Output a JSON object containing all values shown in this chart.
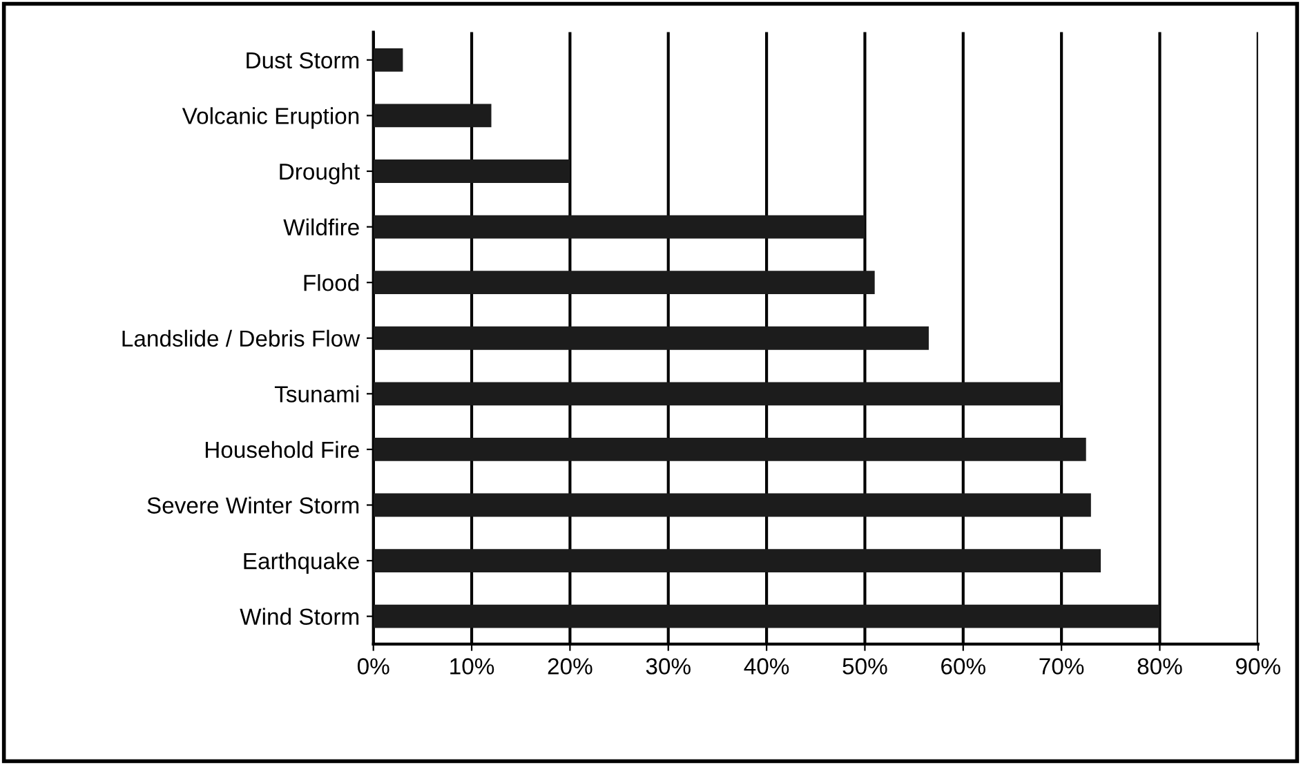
{
  "chart_data": {
    "type": "bar",
    "orientation": "horizontal",
    "categories": [
      "Dust Storm",
      "Volcanic Eruption",
      "Drought",
      "Wildfire",
      "Flood",
      "Landslide / Debris Flow",
      "Tsunami",
      "Household Fire",
      "Severe Winter Storm",
      "Earthquake",
      "Wind Storm"
    ],
    "values": [
      3,
      12,
      20,
      50,
      51,
      56.5,
      70,
      72.5,
      73,
      74,
      80
    ],
    "color": "#1c1c1c",
    "xlim": [
      0,
      90
    ],
    "xticks": [
      {
        "value": 0,
        "label": "0%"
      },
      {
        "value": 10,
        "label": "10%"
      },
      {
        "value": 20,
        "label": "20%"
      },
      {
        "value": 30,
        "label": "30%"
      },
      {
        "value": 40,
        "label": "40%"
      },
      {
        "value": 50,
        "label": "50%"
      },
      {
        "value": 60,
        "label": "60%"
      },
      {
        "value": 70,
        "label": "70%"
      },
      {
        "value": 80,
        "label": "80%"
      },
      {
        "value": 90,
        "label": "90%"
      }
    ],
    "grid": "x",
    "legend": false
  }
}
